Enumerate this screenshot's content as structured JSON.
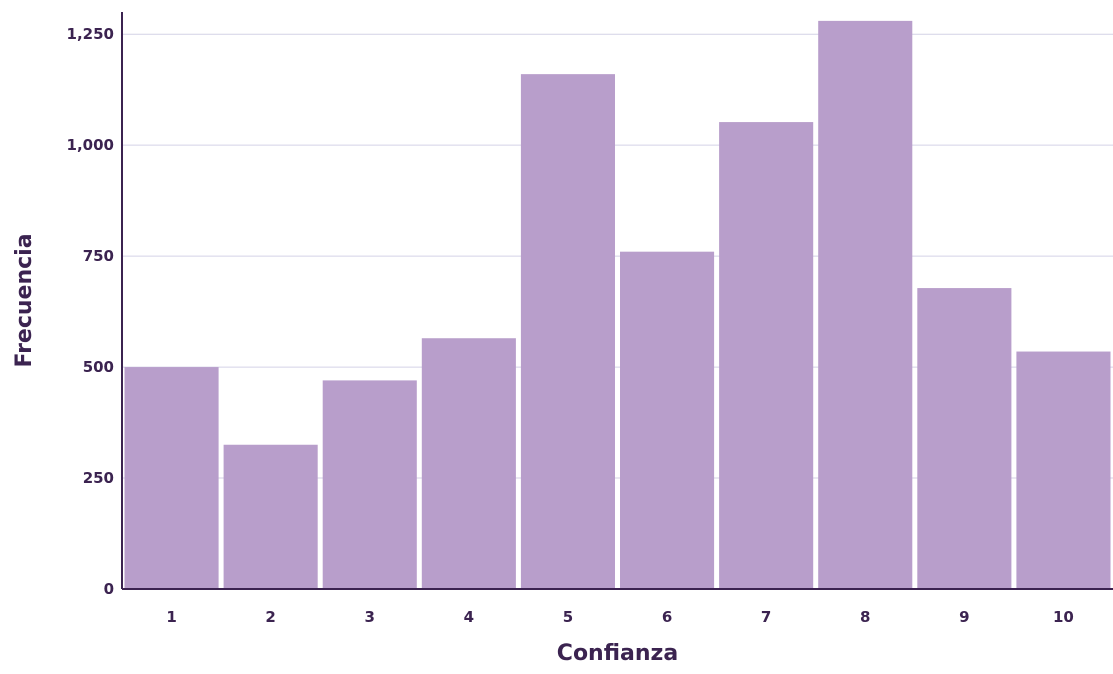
{
  "chart_data": {
    "type": "bar",
    "title": "",
    "xlabel": "Confianza",
    "ylabel": "Frecuencia",
    "categories": [
      "1",
      "2",
      "3",
      "4",
      "5",
      "6",
      "7",
      "8",
      "9",
      "10"
    ],
    "values": [
      500,
      325,
      470,
      565,
      1160,
      760,
      1052,
      1280,
      678,
      535
    ],
    "ylim": [
      0,
      1300
    ],
    "yticks": [
      0,
      250,
      500,
      750,
      1000,
      1250
    ],
    "ytick_labels": [
      "0",
      "250",
      "500",
      "750",
      "1,000",
      "1,250"
    ],
    "grid": true,
    "legend": "none",
    "colors": {
      "bar": "#b89ecb",
      "axis": "#3b2350",
      "grid": "#d4d2e6",
      "text": "#3b2350"
    }
  }
}
